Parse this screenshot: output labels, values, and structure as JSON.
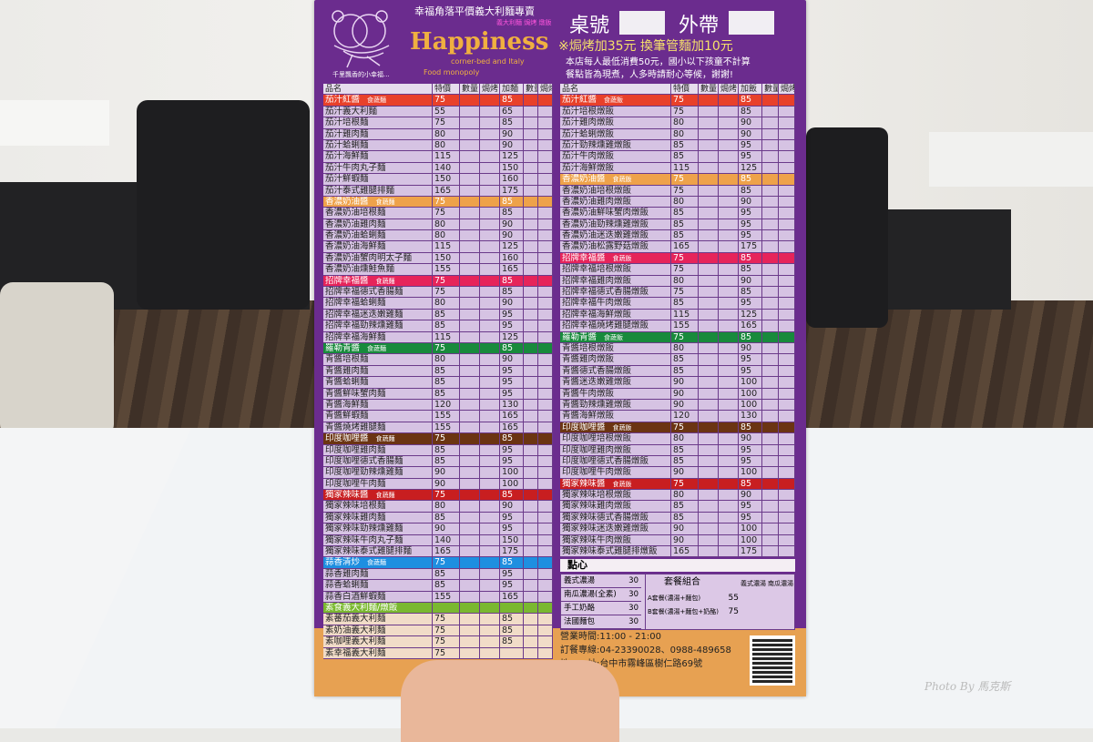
{
  "photo_watermark": "Photo By 馬克斯",
  "header": {
    "slogan": "幸福角落平價義大利麵專賣",
    "subcategories": "義大利麵 焗烤 燉飯",
    "brand": "Happiness",
    "brand_sub1": "corner-bed and Italy",
    "brand_sub2": "Food monopoly",
    "tagline": "千里飄香的小幸福...",
    "table_no_label": "桌號",
    "takeaway_label": "外帶",
    "surcharge": "※焗烤加35元  換筆管麵加10元",
    "note1": "本店每人最低消費50元，國小以下孩童不計算",
    "note2": "餐點皆為現煮，人多時請耐心等候，謝謝!"
  },
  "colors": {
    "menu_purple": "#6b2c8e",
    "row_lavender": "#d6c3e3",
    "bottom_orange": "#e7a152"
  },
  "left_table": {
    "columns": [
      "品名",
      "特價",
      "數量",
      "焗烤",
      "加麵",
      "數量",
      "焗烤"
    ],
    "sections": [
      {
        "title": "茄汁紅醬",
        "tag": "食蔬麵",
        "price": "75",
        "price2": "85",
        "color": "#e8412a",
        "items": [
          [
            "茄汁義大利麵",
            "55",
            "65"
          ],
          [
            "茄汁培根麵",
            "75",
            "85"
          ],
          [
            "茄汁雞肉麵",
            "80",
            "90"
          ],
          [
            "茄汁蛤蜊麵",
            "80",
            "90"
          ],
          [
            "茄汁海鮮麵",
            "115",
            "125"
          ],
          [
            "茄汁牛肉丸子麵",
            "140",
            "150"
          ],
          [
            "茄汁鮮蝦麵",
            "150",
            "160"
          ],
          [
            "茄汁泰式雞腿排麵",
            "165",
            "175"
          ]
        ]
      },
      {
        "title": "香濃奶油醬",
        "tag": "食蔬麵",
        "price": "75",
        "price2": "85",
        "color": "#eea24a",
        "items": [
          [
            "香濃奶油培根麵",
            "75",
            "85"
          ],
          [
            "香濃奶油雞肉麵",
            "80",
            "90"
          ],
          [
            "香濃奶油蛤蜊麵",
            "80",
            "90"
          ],
          [
            "香濃奶油海鮮麵",
            "115",
            "125"
          ],
          [
            "香濃奶油蟹肉明太子麵",
            "150",
            "160"
          ],
          [
            "香濃奶油燻鮭魚麵",
            "155",
            "165"
          ]
        ]
      },
      {
        "title": "招牌幸福醬",
        "tag": "食蔬麵",
        "price": "75",
        "price2": "85",
        "color": "#e6245a",
        "items": [
          [
            "招牌幸福德式香腸麵",
            "75",
            "85"
          ],
          [
            "招牌幸福蛤蜊麵",
            "80",
            "90"
          ],
          [
            "招牌幸福迷迭嫩雞麵",
            "85",
            "95"
          ],
          [
            "招牌幸福勁辣燻雞麵",
            "85",
            "95"
          ],
          [
            "招牌幸福海鮮麵",
            "115",
            "125"
          ]
        ]
      },
      {
        "title": "羅勒青醬",
        "tag": "食蔬麵",
        "price": "75",
        "price2": "85",
        "color": "#188a3c",
        "items": [
          [
            "青醬培根麵",
            "80",
            "90"
          ],
          [
            "青醬雞肉麵",
            "85",
            "95"
          ],
          [
            "青醬蛤蜊麵",
            "85",
            "95"
          ],
          [
            "青醬鮮味蟹肉麵",
            "85",
            "95"
          ],
          [
            "青醬海鮮麵",
            "120",
            "130"
          ],
          [
            "青醬鮮蝦麵",
            "155",
            "165"
          ],
          [
            "青醬燒烤雞腿麵",
            "155",
            "165"
          ]
        ]
      },
      {
        "title": "印度咖哩醬",
        "tag": "食蔬麵",
        "price": "75",
        "price2": "85",
        "color": "#6b3412",
        "items": [
          [
            "印度咖哩雞肉麵",
            "85",
            "95"
          ],
          [
            "印度咖哩德式香腸麵",
            "85",
            "95"
          ],
          [
            "印度咖哩勁辣燻雞麵",
            "90",
            "100"
          ],
          [
            "印度咖哩牛肉麵",
            "90",
            "100"
          ]
        ]
      },
      {
        "title": "獨家辣味醬",
        "tag": "食蔬麵",
        "price": "75",
        "price2": "85",
        "color": "#c81e20",
        "items": [
          [
            "獨家辣味培根麵",
            "80",
            "90"
          ],
          [
            "獨家辣味雞肉麵",
            "85",
            "95"
          ],
          [
            "獨家辣味勁辣燻雞麵",
            "90",
            "95"
          ],
          [
            "獨家辣味牛肉丸子麵",
            "140",
            "150"
          ],
          [
            "獨家辣味泰式雞腿排麵",
            "165",
            "175"
          ]
        ]
      },
      {
        "title": "蒜香清炒",
        "tag": "食蔬麵",
        "price": "75",
        "price2": "85",
        "color": "#1e8fe0",
        "items": [
          [
            "蒜香雞肉麵",
            "85",
            "95"
          ],
          [
            "蒜香蛤蜊麵",
            "85",
            "95"
          ],
          [
            "蒜香白酒鮮蝦麵",
            "155",
            "165"
          ]
        ]
      },
      {
        "title": "素食義大利麵/燉飯",
        "tag": "",
        "price": "",
        "price2": "",
        "color": "#7ab830",
        "cream": true,
        "items": [
          [
            "素蕃茄義大利麵",
            "75",
            "85"
          ],
          [
            "素奶油義大利麵",
            "75",
            "85"
          ],
          [
            "素咖哩義大利麵",
            "75",
            "85"
          ],
          [
            "素幸福義大利麵",
            "75",
            ""
          ]
        ]
      }
    ]
  },
  "right_table": {
    "columns": [
      "品名",
      "特價",
      "數量",
      "焗烤",
      "加飯",
      "數量",
      "焗烤"
    ],
    "sections": [
      {
        "title": "茄汁紅醬",
        "tag": "食蔬飯",
        "price": "75",
        "price2": "85",
        "color": "#e8412a",
        "items": [
          [
            "茄汁培根燉飯",
            "75",
            "85"
          ],
          [
            "茄汁雞肉燉飯",
            "80",
            "90"
          ],
          [
            "茄汁蛤蜊燉飯",
            "80",
            "90"
          ],
          [
            "茄汁勁辣燻雞燉飯",
            "85",
            "95"
          ],
          [
            "茄汁牛肉燉飯",
            "85",
            "95"
          ],
          [
            "茄汁海鮮燉飯",
            "115",
            "125"
          ]
        ]
      },
      {
        "title": "香濃奶油醬",
        "tag": "食蔬飯",
        "price": "75",
        "price2": "85",
        "color": "#eea24a",
        "items": [
          [
            "香濃奶油培根燉飯",
            "75",
            "85"
          ],
          [
            "香濃奶油雞肉燉飯",
            "80",
            "90"
          ],
          [
            "香濃奶油鮮味蟹肉燉飯",
            "85",
            "95"
          ],
          [
            "香濃奶油勁辣燻雞燉飯",
            "85",
            "95"
          ],
          [
            "香濃奶油迷迭嫩雞燉飯",
            "85",
            "95"
          ],
          [
            "香濃奶油松露野菇燉飯",
            "165",
            "175"
          ]
        ]
      },
      {
        "title": "招牌幸福醬",
        "tag": "食蔬飯",
        "price": "75",
        "price2": "85",
        "color": "#e6245a",
        "items": [
          [
            "招牌幸福培根燉飯",
            "75",
            "85"
          ],
          [
            "招牌幸福雞肉燉飯",
            "80",
            "90"
          ],
          [
            "招牌幸福德式香腸燉飯",
            "75",
            "85"
          ],
          [
            "招牌幸福牛肉燉飯",
            "85",
            "95"
          ],
          [
            "招牌幸福海鮮燉飯",
            "115",
            "125"
          ],
          [
            "招牌幸福燒烤雞腿燉飯",
            "155",
            "165"
          ]
        ]
      },
      {
        "title": "羅勒青醬",
        "tag": "食蔬飯",
        "price": "75",
        "price2": "85",
        "color": "#188a3c",
        "items": [
          [
            "青醬培根燉飯",
            "80",
            "90"
          ],
          [
            "青醬雞肉燉飯",
            "85",
            "95"
          ],
          [
            "青醬德式香腸燉飯",
            "85",
            "95"
          ],
          [
            "青醬迷迭嫩雞燉飯",
            "90",
            "100"
          ],
          [
            "青醬牛肉燉飯",
            "90",
            "100"
          ],
          [
            "青醬勁辣燻雞燉飯",
            "90",
            "100"
          ],
          [
            "青醬海鮮燉飯",
            "120",
            "130"
          ]
        ]
      },
      {
        "title": "印度咖哩醬",
        "tag": "食蔬飯",
        "price": "75",
        "price2": "85",
        "color": "#6b3412",
        "items": [
          [
            "印度咖哩培根燉飯",
            "80",
            "90"
          ],
          [
            "印度咖哩雞肉燉飯",
            "85",
            "95"
          ],
          [
            "印度咖哩德式香腸燉飯",
            "85",
            "95"
          ],
          [
            "印度咖哩牛肉燉飯",
            "90",
            "100"
          ]
        ]
      },
      {
        "title": "獨家辣味醬",
        "tag": "食蔬飯",
        "price": "75",
        "price2": "85",
        "color": "#c81e20",
        "items": [
          [
            "獨家辣味培根燉飯",
            "80",
            "90"
          ],
          [
            "獨家辣味雞肉燉飯",
            "85",
            "95"
          ],
          [
            "獨家辣味德式香腸燉飯",
            "85",
            "95"
          ],
          [
            "獨家辣味迷迭嫩雞燉飯",
            "90",
            "100"
          ],
          [
            "獨家辣味牛肉燉飯",
            "90",
            "100"
          ],
          [
            "獨家辣味泰式雞腿排燉飯",
            "165",
            "175"
          ]
        ]
      }
    ]
  },
  "snacks": {
    "title": "點心",
    "items": [
      [
        "義式濃湯",
        "30"
      ],
      [
        "南瓜濃湯(全素)",
        "30"
      ],
      [
        "手工奶酪",
        "30"
      ],
      [
        "法國麵包",
        "30"
      ]
    ],
    "combo_title": "套餐組合",
    "combo_cols": [
      "義式濃湯",
      "南瓜濃湯"
    ],
    "combos": [
      [
        "A套餐(濃湯+麵包)",
        "55"
      ],
      [
        "B套餐(濃湯+麵包+奶酪)",
        "75"
      ]
    ]
  },
  "info": {
    "hours": "營業時間:11:00 - 21:00",
    "phone": "訂餐專線:04-23390028、0988-489658",
    "address": "地　　址:台中市霧峰區樹仁路69號"
  }
}
